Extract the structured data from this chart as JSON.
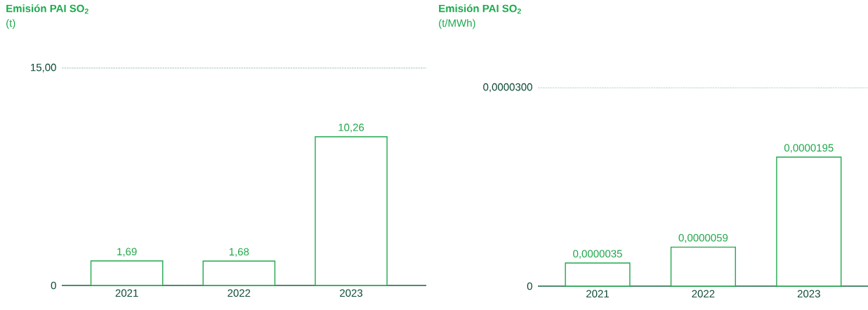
{
  "chart_data": [
    {
      "type": "bar",
      "title": "Emisión PAI SO$_{2}$",
      "subtitle": "(t)",
      "categories": [
        "2021",
        "2022",
        "2023"
      ],
      "values": [
        1.69,
        1.68,
        10.26
      ],
      "value_labels": [
        "1,69",
        "1,68",
        "10,26"
      ],
      "color": "#21a84b",
      "ylim": [
        0,
        15
      ],
      "yticks": [
        0,
        {
          "value": 15,
          "label": "15,00"
        }
      ],
      "grid": "y"
    },
    {
      "type": "bar",
      "title": "Emisión PAI SO$_{2}$",
      "subtitle": "(t/MWh)",
      "categories": [
        "2021",
        "2022",
        "2023"
      ],
      "values": [
        3.5e-06,
        5.9e-06,
        1.95e-05
      ],
      "value_labels": [
        "0,0000035",
        "0,0000059",
        "0,0000195"
      ],
      "color": "#21a84b",
      "ylim": [
        0,
        3e-05
      ],
      "yticks": [
        0,
        {
          "value": 3e-05,
          "label": "0,0000300"
        }
      ],
      "grid": "y"
    }
  ]
}
